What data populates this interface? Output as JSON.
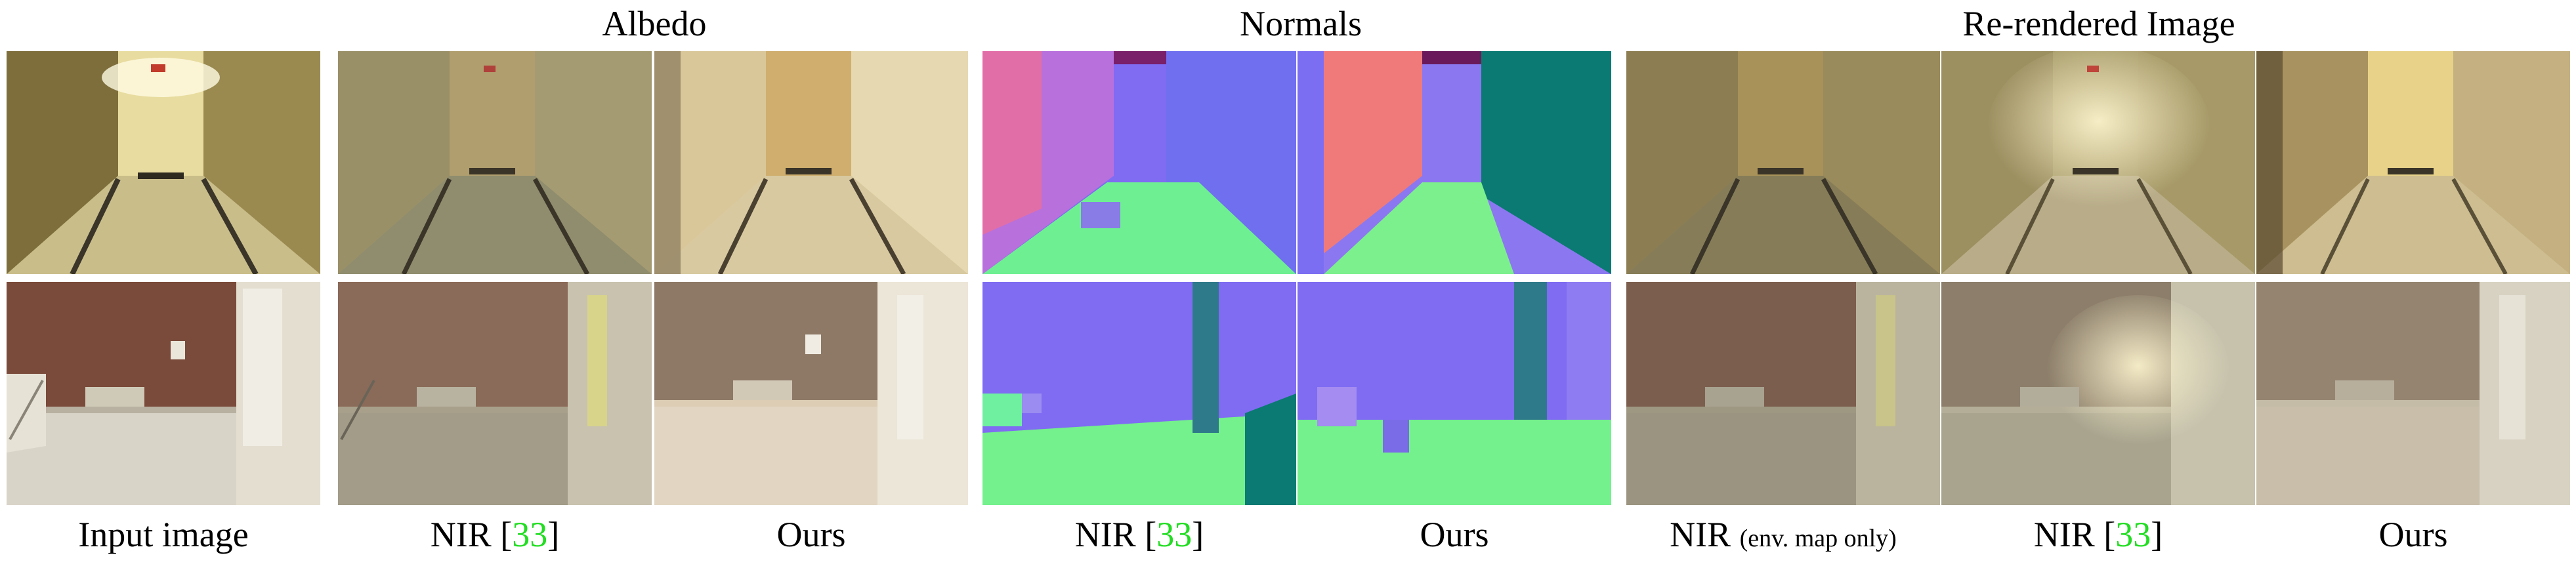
{
  "group_titles": {
    "albedo": "Albedo",
    "normals": "Normals",
    "rerendered": "Re-rendered Image"
  },
  "captions": {
    "input": "Input image",
    "albedo_nir": {
      "method": "NIR",
      "open": " [",
      "ref": "33",
      "close": "]"
    },
    "albedo_ours": "Ours",
    "normals_nir": {
      "method": "NIR",
      "open": " [",
      "ref": "33",
      "close": "]"
    },
    "normals_ours": "Ours",
    "rerender_envmap": {
      "method": "NIR",
      "note": "(env. map only)"
    },
    "rerender_nir": {
      "method": "NIR",
      "open": " [",
      "ref": "33",
      "close": "]"
    },
    "rerender_ours": "Ours"
  },
  "colors": {
    "citation": "#22dd22"
  }
}
